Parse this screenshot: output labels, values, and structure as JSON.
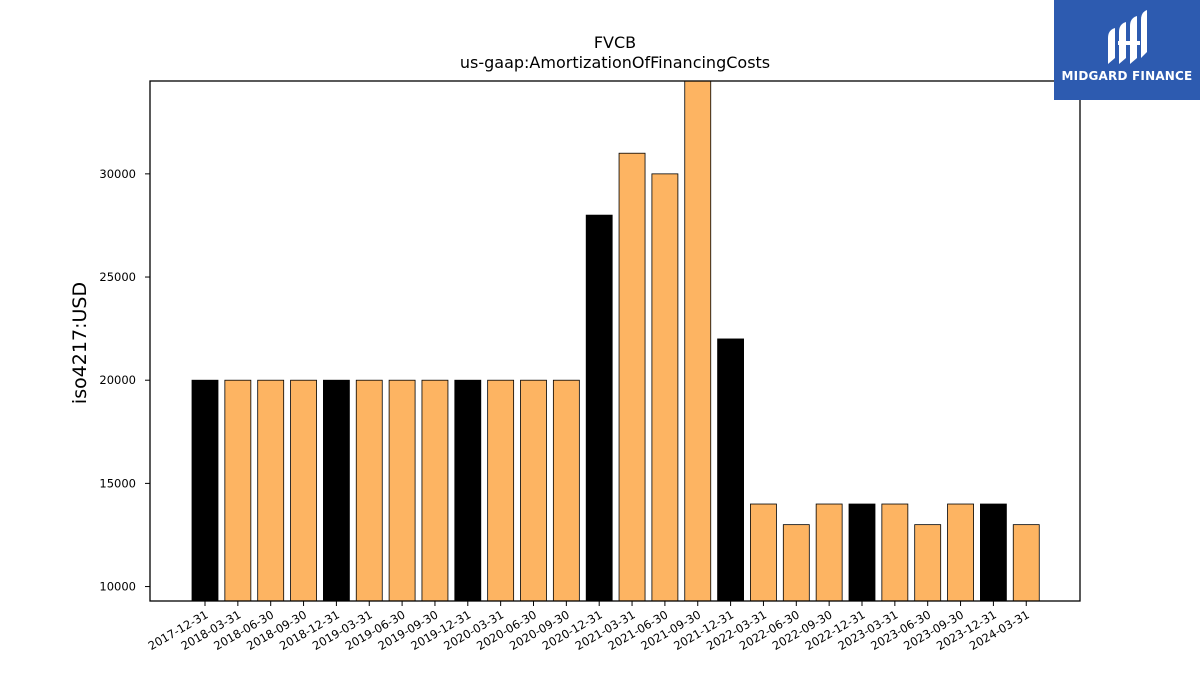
{
  "chart_data": {
    "type": "bar",
    "title": "FVCB",
    "subtitle": "us-gaap:AmortizationOfFinancingCosts",
    "xlabel": "",
    "ylabel": "iso4217:USD",
    "ylim": [
      9300,
      34500
    ],
    "yticks": [
      10000,
      15000,
      20000,
      25000,
      30000
    ],
    "grid": false,
    "categories": [
      "2017-12-31",
      "2018-03-31",
      "2018-06-30",
      "2018-09-30",
      "2018-12-31",
      "2019-03-31",
      "2019-06-30",
      "2019-09-30",
      "2019-12-31",
      "2020-03-31",
      "2020-06-30",
      "2020-09-30",
      "2020-12-31",
      "2021-03-31",
      "2021-06-30",
      "2021-09-30",
      "2021-12-31",
      "2022-03-31",
      "2022-06-30",
      "2022-09-30",
      "2022-12-31",
      "2023-03-31",
      "2023-06-30",
      "2023-09-30",
      "2023-12-31",
      "2024-03-31"
    ],
    "values": [
      20000,
      20000,
      20000,
      20000,
      20000,
      20000,
      20000,
      20000,
      20000,
      20000,
      20000,
      20000,
      28000,
      31000,
      30000,
      35000,
      22000,
      14000,
      13000,
      14000,
      14000,
      14000,
      13000,
      14000,
      14000,
      13000
    ],
    "bar_colors": {
      "annual": "#000000",
      "quarterly": "#fdb462",
      "edge": "#000000"
    },
    "annual_categories": [
      "2017-12-31",
      "2018-12-31",
      "2019-12-31",
      "2020-12-31",
      "2021-12-31",
      "2022-12-31",
      "2023-12-31"
    ]
  },
  "logo": {
    "text": "MIDGARD FINANCE",
    "background": "#2d5bb0"
  }
}
